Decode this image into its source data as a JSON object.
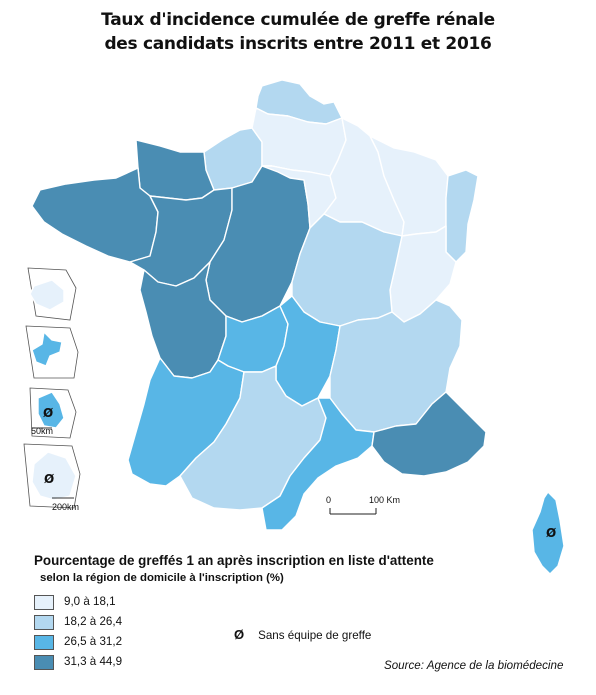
{
  "title_line1": "Taux d'incidence cumulée de greffe rénale",
  "title_line2": "des candidats inscrits entre 2011 et 2016",
  "legend": {
    "title": "Pourcentage de greffés 1 an après inscription en liste d'attente",
    "subtitle": "selon la région de domicile à l'inscription (%)",
    "classes": [
      {
        "label": "9,0 à 18,1",
        "color": "#e6f1fb"
      },
      {
        "label": "18,2 à 26,4",
        "color": "#b3d8f0"
      },
      {
        "label": "26,5 à 31,2",
        "color": "#58b6e6"
      },
      {
        "label": "31,3 à 44,9",
        "color": "#4a8db3"
      }
    ]
  },
  "no_surgery": {
    "symbol": "Ø",
    "label": "Sans équipe de greffe"
  },
  "scale": {
    "zero": "0",
    "end": "100 Km"
  },
  "inset_scales": {
    "small": "50km",
    "large": "200km"
  },
  "source": "Source: Agence de la biomédecine",
  "regions": [
    {
      "name": "Nord",
      "class": 1
    },
    {
      "name": "Haute-Normandie",
      "class": 1
    },
    {
      "name": "Picardie",
      "class": 0
    },
    {
      "name": "Basse-Normandie",
      "class": 3
    },
    {
      "name": "Bretagne",
      "class": 3
    },
    {
      "name": "Pays de la Loire",
      "class": 3
    },
    {
      "name": "Centre",
      "class": 3
    },
    {
      "name": "Poitou-Charentes",
      "class": 3
    },
    {
      "name": "Ile-de-France",
      "class": 0
    },
    {
      "name": "Champagne-Ardenne",
      "class": 0
    },
    {
      "name": "Lorraine",
      "class": 0
    },
    {
      "name": "Alsace",
      "class": 1
    },
    {
      "name": "Franche-Comté",
      "class": 0
    },
    {
      "name": "Bourgogne",
      "class": 1
    },
    {
      "name": "Limousin",
      "class": 2
    },
    {
      "name": "Auvergne",
      "class": 2
    },
    {
      "name": "Rhône-Alpes",
      "class": 1
    },
    {
      "name": "Aquitaine",
      "class": 2
    },
    {
      "name": "Midi-Pyrénées",
      "class": 1
    },
    {
      "name": "Languedoc-Roussillon",
      "class": 2
    },
    {
      "name": "PACA",
      "class": 3
    },
    {
      "name": "Corse",
      "class": 2,
      "no_surgery": true
    },
    {
      "name": "Réunion",
      "class": 0
    },
    {
      "name": "Guadeloupe",
      "class": 2
    },
    {
      "name": "Martinique",
      "class": 2,
      "no_surgery": true
    },
    {
      "name": "Guyane",
      "class": 0,
      "no_surgery": true
    }
  ]
}
